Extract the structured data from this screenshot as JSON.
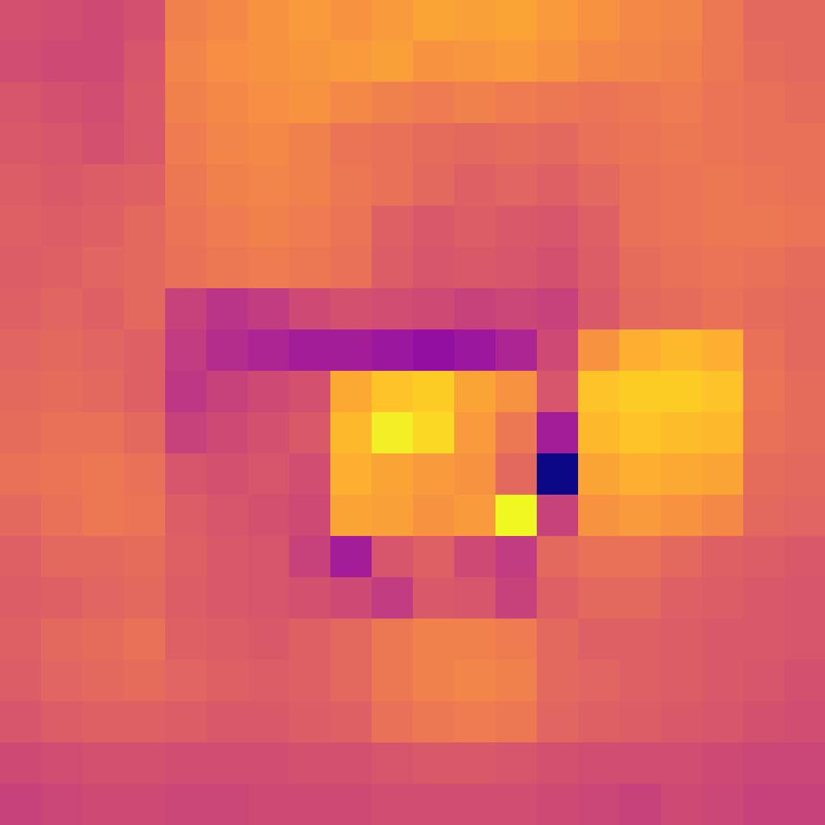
{
  "chart_data": {
    "type": "heatmap",
    "color": "plasma",
    "tick_labels": false,
    "cells": [
      [
        54,
        53,
        52,
        54,
        66,
        68,
        70,
        72,
        70,
        72,
        74,
        73,
        74,
        72,
        70,
        68,
        67,
        64,
        60,
        60
      ],
      [
        53,
        52,
        52,
        55,
        67,
        69,
        70,
        71,
        72,
        73,
        70,
        71,
        72,
        70,
        68,
        67,
        66,
        64,
        61,
        60
      ],
      [
        55,
        54,
        53,
        56,
        66,
        68,
        69,
        70,
        68,
        66,
        65,
        66,
        65,
        64,
        63,
        64,
        65,
        63,
        62,
        61
      ],
      [
        56,
        55,
        54,
        56,
        65,
        67,
        68,
        66,
        63,
        62,
        61,
        60,
        61,
        60,
        62,
        63,
        64,
        63,
        62,
        62
      ],
      [
        57,
        56,
        57,
        58,
        64,
        66,
        67,
        66,
        64,
        62,
        60,
        58,
        59,
        58,
        60,
        62,
        63,
        64,
        63,
        62
      ],
      [
        58,
        57,
        58,
        60,
        63,
        65,
        66,
        65,
        63,
        58,
        56,
        57,
        56,
        55,
        58,
        62,
        63,
        64,
        64,
        63
      ],
      [
        57,
        58,
        59,
        60,
        62,
        64,
        65,
        64,
        62,
        57,
        55,
        56,
        55,
        54,
        57,
        61,
        62,
        63,
        62,
        61
      ],
      [
        58,
        59,
        58,
        60,
        50,
        46,
        48,
        52,
        54,
        53,
        52,
        50,
        51,
        50,
        56,
        60,
        61,
        62,
        61,
        60
      ],
      [
        59,
        60,
        59,
        58,
        48,
        44,
        42,
        40,
        40,
        38,
        36,
        38,
        42,
        52,
        70,
        76,
        78,
        76,
        62,
        60
      ],
      [
        60,
        61,
        60,
        58,
        47,
        50,
        52,
        54,
        75,
        80,
        82,
        74,
        70,
        55,
        80,
        82,
        82,
        80,
        63,
        61
      ],
      [
        61,
        62,
        62,
        60,
        50,
        52,
        54,
        56,
        78,
        88,
        84,
        72,
        64,
        40,
        78,
        80,
        79,
        78,
        62,
        61
      ],
      [
        62,
        63,
        64,
        62,
        55,
        54,
        55,
        53,
        76,
        74,
        72,
        70,
        60,
        12,
        74,
        76,
        75,
        74,
        61,
        60
      ],
      [
        60,
        62,
        64,
        63,
        57,
        55,
        54,
        52,
        74,
        73,
        70,
        72,
        90,
        50,
        70,
        72,
        70,
        68,
        60,
        59
      ],
      [
        58,
        60,
        60,
        61,
        58,
        56,
        55,
        50,
        40,
        55,
        58,
        52,
        48,
        60,
        62,
        62,
        60,
        58,
        57,
        56
      ],
      [
        57,
        58,
        59,
        60,
        57,
        56,
        55,
        54,
        52,
        48,
        56,
        55,
        50,
        58,
        60,
        60,
        58,
        57,
        56,
        55
      ],
      [
        58,
        60,
        61,
        62,
        58,
        57,
        56,
        58,
        60,
        64,
        66,
        66,
        65,
        60,
        58,
        58,
        57,
        56,
        56,
        55
      ],
      [
        57,
        59,
        60,
        61,
        59,
        58,
        57,
        58,
        60,
        64,
        66,
        67,
        66,
        60,
        59,
        58,
        57,
        56,
        55,
        54
      ],
      [
        55,
        57,
        58,
        58,
        57,
        56,
        56,
        57,
        58,
        62,
        64,
        65,
        64,
        59,
        58,
        57,
        56,
        55,
        54,
        53
      ],
      [
        52,
        53,
        54,
        54,
        53,
        53,
        53,
        54,
        54,
        55,
        56,
        56,
        55,
        54,
        53,
        53,
        53,
        52,
        51,
        51
      ],
      [
        50,
        51,
        52,
        52,
        51,
        51,
        52,
        52,
        52,
        53,
        53,
        53,
        53,
        52,
        51,
        50,
        52,
        51,
        50,
        50
      ]
    ]
  }
}
